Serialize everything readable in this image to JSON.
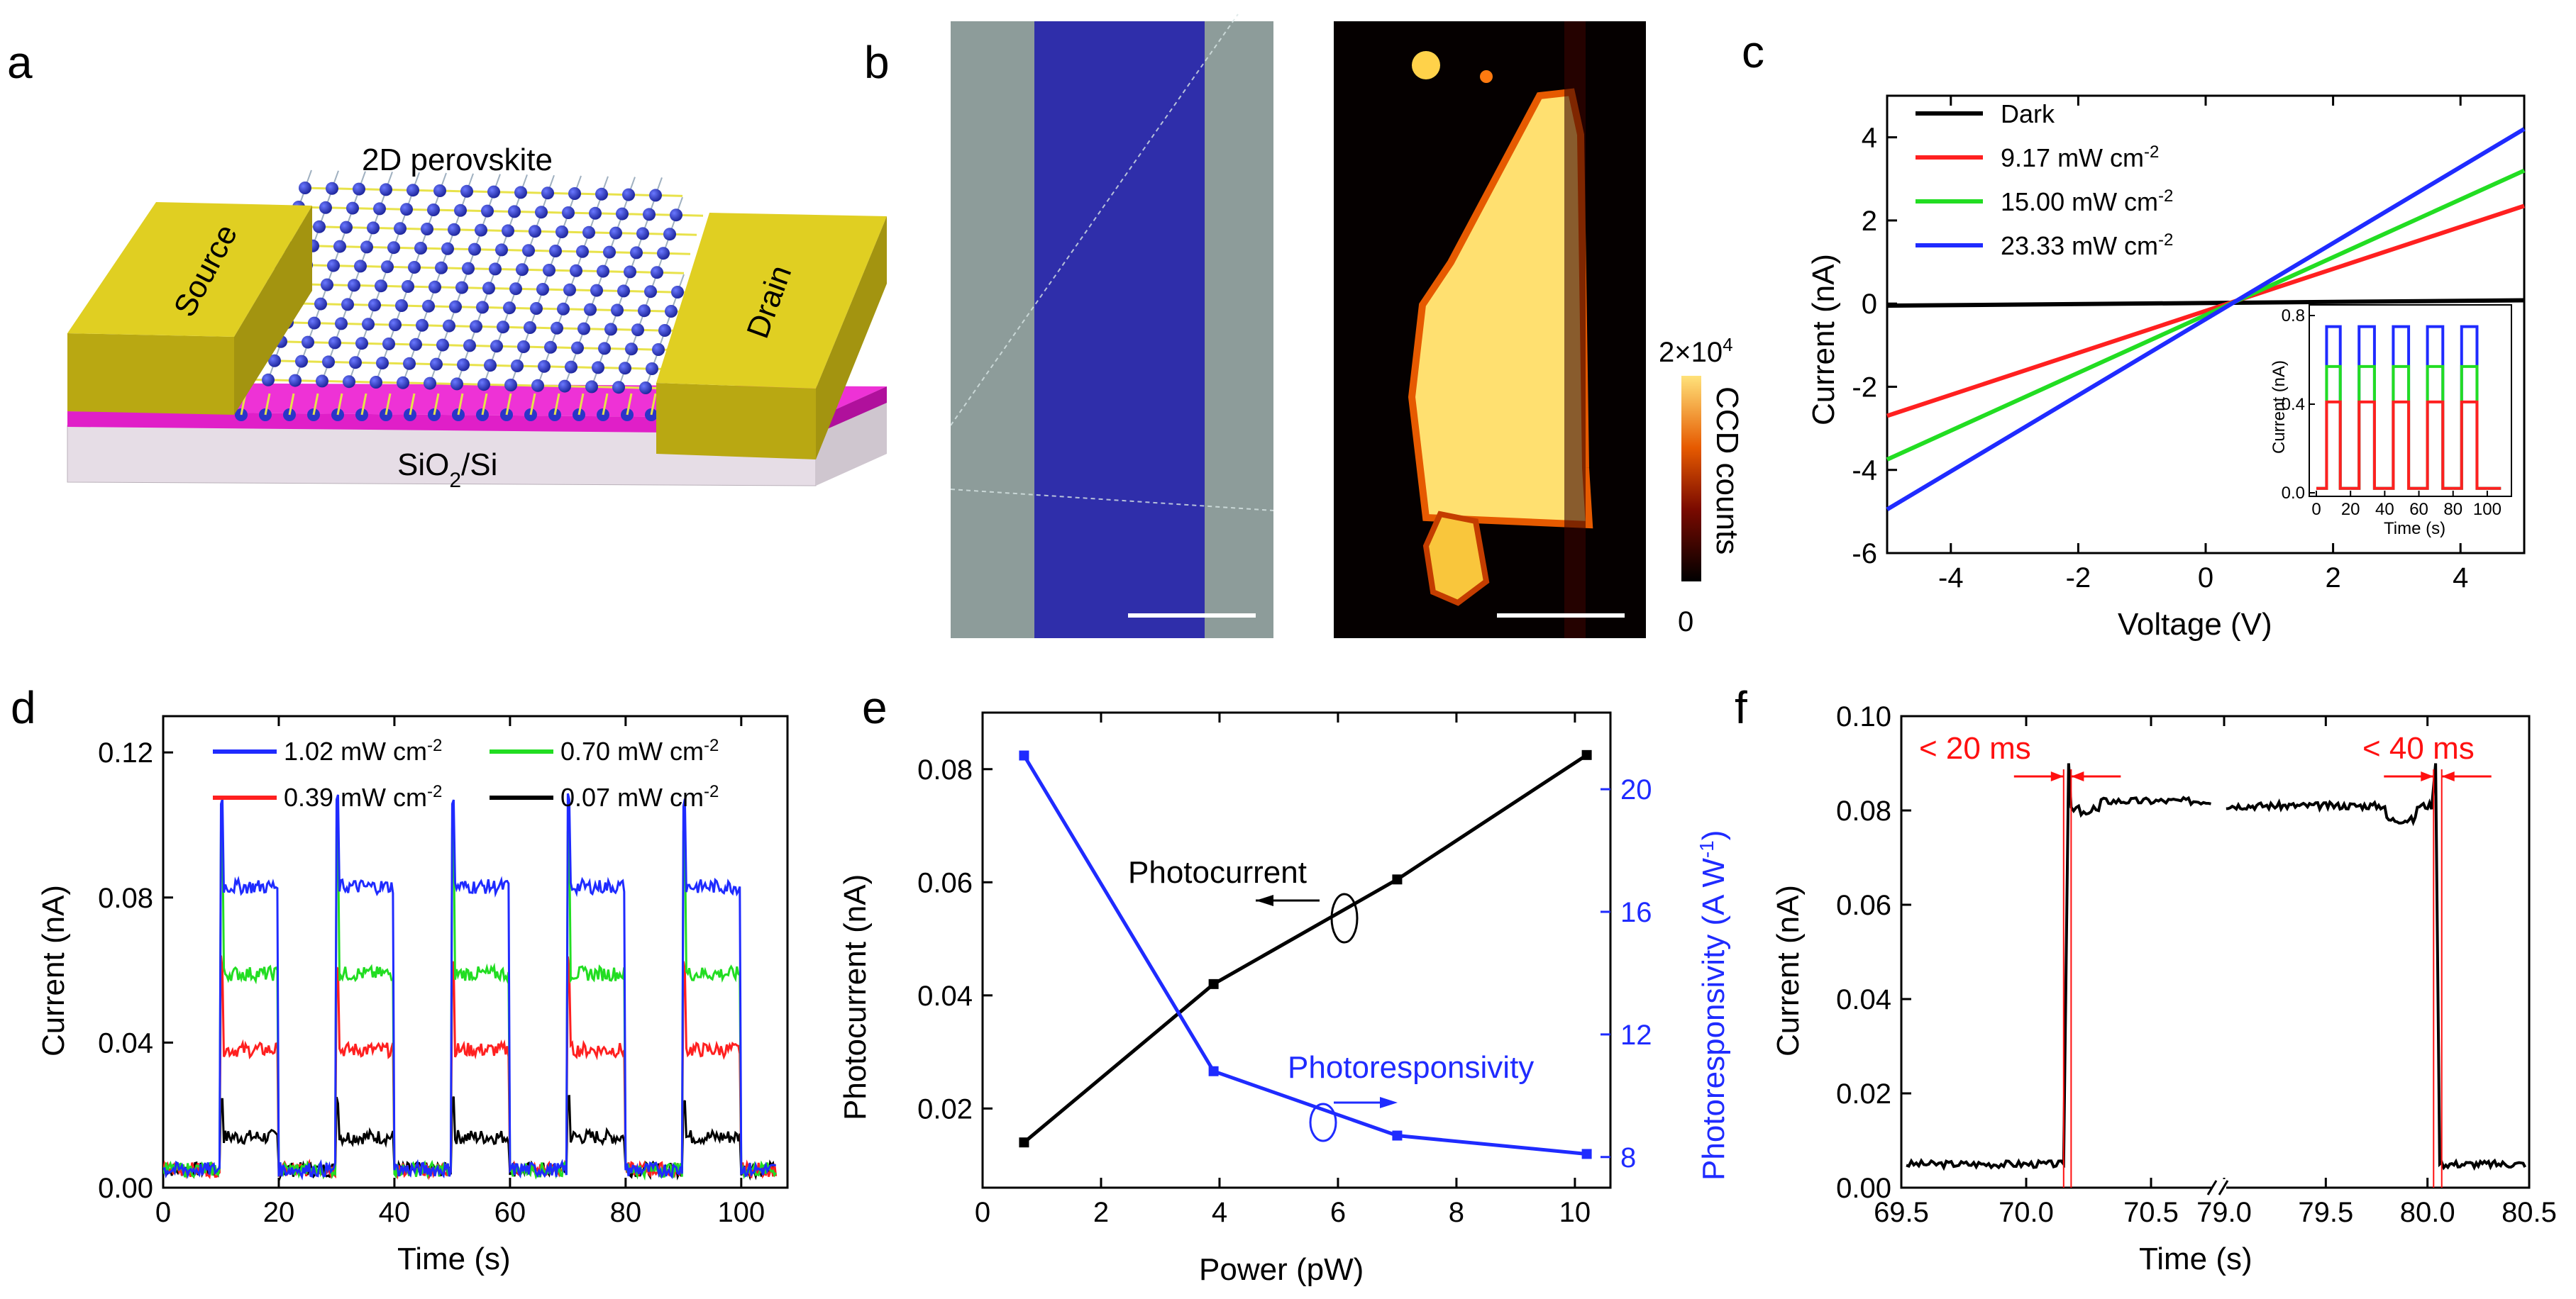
{
  "panels": {
    "a": {
      "letter": "a",
      "title": "2D perovskite",
      "source_label": "Source",
      "drain_label": "Drain",
      "substrate_label_main": "SiO",
      "substrate_label_sub": "2",
      "substrate_label_tail": "/Si",
      "colors": {
        "electrode": "#d4c21a",
        "oxide": "#e01fc8",
        "substrate": "#e6dde6",
        "atom": "#2a35c8",
        "bond": "#e8e24a"
      }
    },
    "b": {
      "letter": "b",
      "colorbar_max_main": "2×10",
      "colorbar_max_exp": "4",
      "colorbar_min": "0",
      "colorbar_label": "CCD counts",
      "colors": {
        "optical_bg": "#8d9c9a",
        "flake": "#2f2eaa",
        "map_bg": "#050000",
        "map_hot": "#ffe070"
      }
    },
    "c": {
      "letter": "c",
      "legend_title_colors": {
        "Dark": "#000000",
        "9.17": "#ff2020",
        "15.00": "#22dd22",
        "23.33": "#1f2bff"
      }
    },
    "d": {
      "letter": "d"
    },
    "e": {
      "letter": "e"
    },
    "f": {
      "letter": "f",
      "annot_left": "< 20 ms",
      "annot_right": "< 40 ms",
      "annot_color": "#ff1010"
    }
  },
  "chart_data": [
    {
      "id": "c",
      "type": "line",
      "title": "",
      "xlabel": "Voltage (V)",
      "ylabel": "Current (nA)",
      "xlim": [
        -5,
        5
      ],
      "ylim": [
        -6,
        5
      ],
      "xticks": [
        -4,
        -2,
        0,
        2,
        4
      ],
      "yticks": [
        -6,
        -4,
        -2,
        0,
        2,
        4
      ],
      "series": [
        {
          "name": "Dark",
          "unit": "",
          "color": "#000000",
          "x": [
            -5,
            5
          ],
          "y": [
            -0.05,
            0.08
          ]
        },
        {
          "name": "9.17 mW cm",
          "unit_exp": "-2",
          "color": "#ff2020",
          "x": [
            -5,
            5
          ],
          "y": [
            -2.7,
            2.35
          ]
        },
        {
          "name": "15.00 mW cm",
          "unit_exp": "-2",
          "color": "#22dd22",
          "x": [
            -5,
            5
          ],
          "y": [
            -3.75,
            3.2
          ]
        },
        {
          "name": "23.33 mW cm",
          "unit_exp": "-2",
          "color": "#1f2bff",
          "x": [
            -5,
            5
          ],
          "y": [
            -4.95,
            4.2
          ]
        }
      ],
      "inset": {
        "type": "line",
        "xlabel": "Time (s)",
        "ylabel": "Current (nA)",
        "xlim": [
          0,
          110
        ],
        "ylim": [
          0,
          0.8
        ],
        "xticks": [
          0,
          20,
          40,
          60,
          80,
          100
        ],
        "yticks": [
          0.0,
          0.4,
          0.8
        ],
        "ytick_labels": [
          "0.0",
          "0.4",
          "0.8"
        ],
        "periods_on": [
          [
            6,
            14
          ],
          [
            25,
            34
          ],
          [
            45,
            54
          ],
          [
            65,
            74
          ],
          [
            85,
            94
          ]
        ],
        "levels": [
          {
            "color": "#1f2bff",
            "value": 0.75
          },
          {
            "color": "#22dd22",
            "value": 0.57
          },
          {
            "color": "#ff2020",
            "value": 0.41
          }
        ]
      }
    },
    {
      "id": "d",
      "type": "line",
      "xlabel": "Time (s)",
      "ylabel": "Current (nA)",
      "xlim": [
        0,
        108
      ],
      "ylim": [
        0,
        0.13
      ],
      "xticks": [
        0,
        20,
        40,
        60,
        80,
        100
      ],
      "yticks": [
        0.0,
        0.04,
        0.08,
        0.12
      ],
      "ytick_labels": [
        "0.00",
        "0.04",
        "0.08",
        "0.12"
      ],
      "periods_on": [
        [
          10,
          20
        ],
        [
          30,
          40
        ],
        [
          50,
          60
        ],
        [
          70,
          80
        ],
        [
          90,
          100
        ]
      ],
      "dark_level": 0.005,
      "series": [
        {
          "name": "1.02 mW cm",
          "unit_exp": "-2",
          "color": "#1f2bff",
          "level": 0.083,
          "peak": 0.107
        },
        {
          "name": "0.70 mW cm",
          "unit_exp": "-2",
          "color": "#22dd22",
          "level": 0.059,
          "peak": 0.098
        },
        {
          "name": "0.39 mW cm",
          "unit_exp": "-2",
          "color": "#ff2020",
          "level": 0.038,
          "peak": 0.062
        },
        {
          "name": "0.07 mW cm",
          "unit_exp": "-2",
          "color": "#000000",
          "level": 0.014,
          "peak": 0.025
        }
      ]
    },
    {
      "id": "e",
      "type": "line",
      "xlabel": "Power (pW)",
      "ylabel": "Photocurrent (nA)",
      "y2label": "Photoresponsivity (A W",
      "y2label_exp": "-1",
      "y2label_tail": ")",
      "xlim": [
        0,
        10.6
      ],
      "ylim": [
        0.006,
        0.09
      ],
      "y2lim": [
        7,
        22.5
      ],
      "xticks": [
        0,
        2,
        4,
        6,
        8,
        10
      ],
      "yticks": [
        0.02,
        0.04,
        0.06,
        0.08
      ],
      "y2ticks": [
        8,
        12,
        16,
        20
      ],
      "series": [
        {
          "name": "Photocurrent",
          "axis": "left",
          "color": "#000000",
          "x": [
            0.7,
            3.9,
            7.0,
            10.2
          ],
          "y": [
            0.014,
            0.042,
            0.0605,
            0.0825
          ]
        },
        {
          "name": "Photoresponsivity",
          "axis": "right",
          "color": "#1f2bff",
          "x": [
            0.7,
            3.9,
            7.0,
            10.2
          ],
          "y": [
            21.1,
            10.8,
            8.7,
            8.1
          ]
        }
      ]
    },
    {
      "id": "f",
      "type": "line",
      "xlabel": "Time (s)",
      "ylabel": "Current (nA)",
      "broken_axis": true,
      "segments": [
        {
          "xlim": [
            69.5,
            70.75
          ]
        },
        {
          "xlim": [
            79.0,
            80.5
          ]
        }
      ],
      "ylim": [
        0,
        0.1
      ],
      "xticks": [
        69.5,
        70.0,
        70.5,
        79.0,
        79.5,
        80.0,
        80.5
      ],
      "xtick_labels": [
        "69.5",
        "70.0",
        "70.5",
        "79.0",
        "79.5",
        "80.0",
        "80.5"
      ],
      "yticks": [
        0.0,
        0.02,
        0.04,
        0.06,
        0.08,
        0.1
      ],
      "ytick_labels": [
        "0.00",
        "0.02",
        "0.04",
        "0.06",
        "0.08",
        "0.10"
      ],
      "rise_time": 70.15,
      "fall_time": 80.05,
      "low_level": 0.005,
      "high_level": 0.082,
      "peak": 0.09,
      "color": "#000000"
    }
  ]
}
